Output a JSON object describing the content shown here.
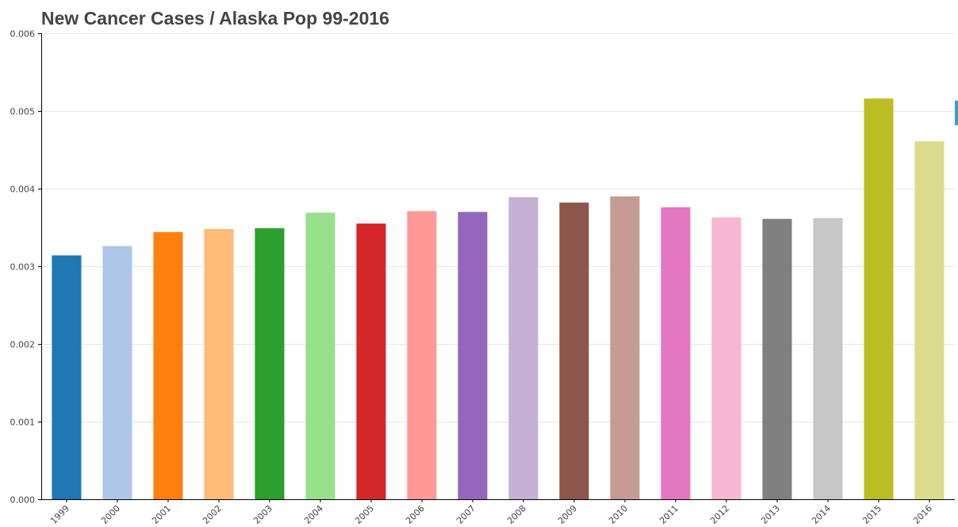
{
  "chart_data": {
    "type": "bar",
    "title": "New Cancer Cases / Alaska Pop 99-2016",
    "xlabel": "",
    "ylabel": "",
    "categories": [
      "1999",
      "2000",
      "2001",
      "2002",
      "2003",
      "2004",
      "2005",
      "2006",
      "2007",
      "2008",
      "2009",
      "2010",
      "2011",
      "2012",
      "2013",
      "2014",
      "2015",
      "2016"
    ],
    "values": [
      0.00314,
      0.00326,
      0.00344,
      0.00348,
      0.00349,
      0.00369,
      0.00355,
      0.00371,
      0.0037,
      0.00389,
      0.00382,
      0.0039,
      0.00376,
      0.00363,
      0.00361,
      0.00362,
      0.00516,
      0.00461
    ],
    "colors": [
      "#1f77b4",
      "#aec7e8",
      "#ff7f0e",
      "#ffbb78",
      "#2ca02c",
      "#98df8a",
      "#d62728",
      "#ff9896",
      "#9467bd",
      "#c5b0d5",
      "#8c564b",
      "#c49c94",
      "#e377c2",
      "#f7b6d2",
      "#7f7f7f",
      "#c7c7c7",
      "#bcbd22",
      "#dbdb8d"
    ],
    "ylim": [
      0,
      0.006
    ],
    "yticks": [
      "0.000",
      "0.001",
      "0.002",
      "0.003",
      "0.004",
      "0.005",
      "0.006"
    ],
    "grid": true,
    "legend": "none"
  }
}
